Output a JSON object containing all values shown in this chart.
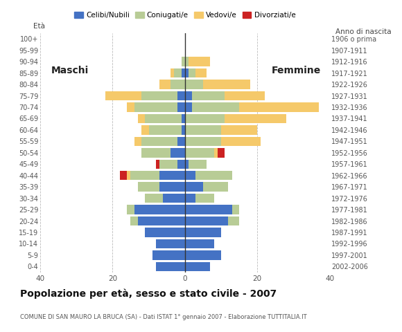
{
  "age_groups": [
    "0-4",
    "5-9",
    "10-14",
    "15-19",
    "20-24",
    "25-29",
    "30-34",
    "35-39",
    "40-44",
    "45-49",
    "50-54",
    "55-59",
    "60-64",
    "65-69",
    "70-74",
    "75-79",
    "80-84",
    "85-89",
    "90-94",
    "95-99",
    "100+"
  ],
  "birth_years": [
    "2002-2006",
    "1997-2001",
    "1992-1996",
    "1987-1991",
    "1982-1986",
    "1977-1981",
    "1972-1976",
    "1967-1971",
    "1962-1966",
    "1957-1961",
    "1952-1956",
    "1947-1951",
    "1942-1946",
    "1937-1941",
    "1932-1936",
    "1927-1931",
    "1922-1926",
    "1917-1921",
    "1912-1916",
    "1907-1911",
    "1906 o prima"
  ],
  "male": {
    "celibi": [
      8,
      9,
      8,
      11,
      13,
      14,
      6,
      7,
      7,
      2,
      4,
      2,
      1,
      1,
      2,
      2,
      0,
      1,
      0,
      0,
      0
    ],
    "coniugati": [
      0,
      0,
      0,
      0,
      2,
      2,
      5,
      6,
      8,
      5,
      8,
      10,
      9,
      10,
      12,
      10,
      4,
      2,
      1,
      0,
      0
    ],
    "vedovi": [
      0,
      0,
      0,
      0,
      0,
      0,
      0,
      0,
      1,
      0,
      0,
      2,
      2,
      2,
      2,
      10,
      3,
      1,
      0,
      0,
      0
    ],
    "divorziati": [
      0,
      0,
      0,
      0,
      0,
      0,
      0,
      0,
      2,
      1,
      0,
      0,
      0,
      0,
      0,
      0,
      0,
      0,
      0,
      0,
      0
    ]
  },
  "female": {
    "nubili": [
      7,
      10,
      8,
      10,
      12,
      13,
      3,
      5,
      3,
      1,
      0,
      0,
      0,
      0,
      2,
      2,
      0,
      1,
      0,
      0,
      0
    ],
    "coniugate": [
      0,
      0,
      0,
      0,
      3,
      2,
      5,
      7,
      10,
      5,
      8,
      10,
      10,
      11,
      13,
      9,
      5,
      2,
      1,
      0,
      0
    ],
    "vedove": [
      0,
      0,
      0,
      0,
      0,
      0,
      0,
      0,
      0,
      0,
      1,
      11,
      10,
      17,
      22,
      11,
      13,
      3,
      6,
      0,
      0
    ],
    "divorziate": [
      0,
      0,
      0,
      0,
      0,
      0,
      0,
      0,
      0,
      0,
      2,
      0,
      0,
      0,
      0,
      0,
      0,
      0,
      0,
      0,
      0
    ]
  },
  "colors": {
    "celibi": "#4472c4",
    "coniugati": "#b8cc96",
    "vedovi": "#f5c96a",
    "divorziati": "#cc2222"
  },
  "title": "Popolazione per età, sesso e stato civile - 2007",
  "subtitle": "COMUNE DI SAN MAURO LA BRUCA (SA) - Dati ISTAT 1° gennaio 2007 - Elaborazione TUTTITALIA.IT",
  "xlabel_left": "Maschi",
  "xlabel_right": "Femmine",
  "ylabel_left": "Età",
  "ylabel_right": "Anno di nascita",
  "xlim": 40,
  "legend_labels": [
    "Celibi/Nubili",
    "Coniugati/e",
    "Vedovi/e",
    "Divorziati/e"
  ],
  "bg_color": "#ffffff",
  "grid_color": "#bbbbbb"
}
